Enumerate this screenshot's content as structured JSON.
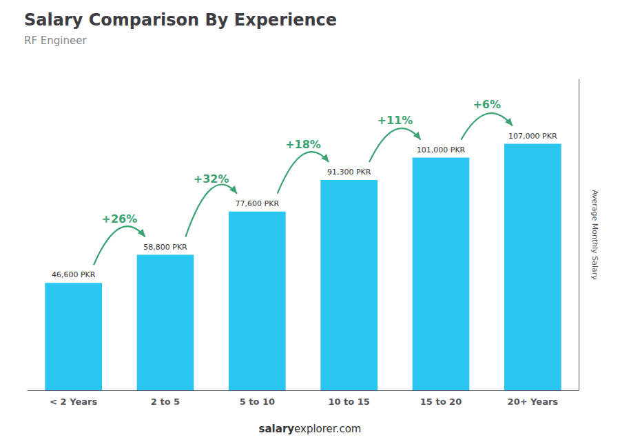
{
  "chart_data": {
    "type": "bar",
    "title": "Salary Comparison By Experience",
    "subtitle": "RF Engineer",
    "ylabel": "Average Monthly Salary",
    "categories": [
      "< 2 Years",
      "2 to 5",
      "5 to 10",
      "10 to 15",
      "15 to 20",
      "20+ Years"
    ],
    "values": [
      46600,
      58800,
      77600,
      91300,
      101000,
      107000
    ],
    "value_labels": [
      "46,600 PKR",
      "58,800 PKR",
      "77,600 PKR",
      "91,300 PKR",
      "101,000 PKR",
      "107,000 PKR"
    ],
    "data_labels": true,
    "color": "#29C7F0",
    "ylim": [
      0,
      135000
    ],
    "tick_labels": "x",
    "grid": false,
    "annotations": [
      "+26%",
      "+32%",
      "+18%",
      "+11%",
      "+6%"
    ],
    "watermark": [
      "salary",
      "explorer.com"
    ]
  }
}
